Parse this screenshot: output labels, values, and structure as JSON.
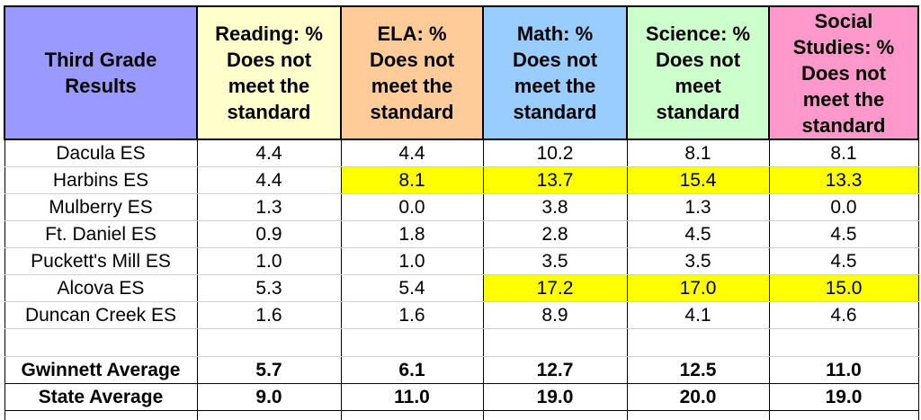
{
  "table": {
    "headers": [
      {
        "lines": [
          "Third Grade",
          "Results"
        ],
        "bg": "#9999ff"
      },
      {
        "lines": [
          "Reading: %",
          "Does not",
          "meet the",
          "standard"
        ],
        "bg": "#ffffcc"
      },
      {
        "lines": [
          "ELA: %",
          "Does not",
          "meet the",
          "standard"
        ],
        "bg": "#ffcc99"
      },
      {
        "lines": [
          "Math: %",
          "Does not",
          "meet the",
          "standard"
        ],
        "bg": "#99ccff"
      },
      {
        "lines": [
          "Science: %",
          "Does not",
          "meet",
          "standard"
        ],
        "bg": "#ccffcc"
      },
      {
        "lines": [
          "Social",
          "Studies: %",
          "Does not",
          "meet the",
          "standard"
        ],
        "bg": "#ff99cc"
      }
    ],
    "rows": [
      {
        "school": "Dacula ES",
        "values": [
          "4.4",
          "4.4",
          "10.2",
          "8.1",
          "8.1"
        ],
        "highlight": [
          false,
          false,
          false,
          false,
          false
        ]
      },
      {
        "school": "Harbins ES",
        "values": [
          "4.4",
          "8.1",
          "13.7",
          "15.4",
          "13.3"
        ],
        "highlight": [
          false,
          true,
          true,
          true,
          true
        ]
      },
      {
        "school": "Mulberry ES",
        "values": [
          "1.3",
          "0.0",
          "3.8",
          "1.3",
          "0.0"
        ],
        "highlight": [
          false,
          false,
          false,
          false,
          false
        ]
      },
      {
        "school": "Ft. Daniel ES",
        "values": [
          "0.9",
          "1.8",
          "2.8",
          "4.5",
          "4.5"
        ],
        "highlight": [
          false,
          false,
          false,
          false,
          false
        ]
      },
      {
        "school": "Puckett's Mill ES",
        "values": [
          "1.0",
          "1.0",
          "3.5",
          "3.5",
          "4.5"
        ],
        "highlight": [
          false,
          false,
          false,
          false,
          false
        ]
      },
      {
        "school": "Alcova ES",
        "values": [
          "5.3",
          "5.4",
          "17.2",
          "17.0",
          "15.0"
        ],
        "highlight": [
          false,
          false,
          true,
          true,
          true
        ]
      },
      {
        "school": "Duncan Creek ES",
        "values": [
          "1.6",
          "1.6",
          "8.9",
          "4.1",
          "4.6"
        ],
        "highlight": [
          false,
          false,
          false,
          false,
          false
        ]
      }
    ],
    "averages": [
      {
        "label": "Gwinnett Average",
        "values": [
          "5.7",
          "6.1",
          "12.7",
          "12.5",
          "11.0"
        ]
      },
      {
        "label": "State Average",
        "values": [
          "9.0",
          "11.0",
          "19.0",
          "20.0",
          "19.0"
        ]
      }
    ],
    "highlight_color": "#ffff00"
  }
}
